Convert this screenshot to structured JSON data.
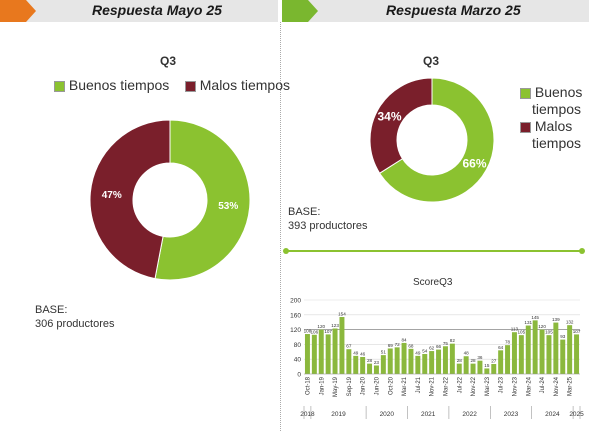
{
  "left_panel": {
    "header": "Respuesta Mayo 25",
    "base_label": "BASE:",
    "base_value": "306 productores"
  },
  "right_panel": {
    "header": "Respuesta Marzo 25",
    "base_label": "BASE:",
    "base_value": "393 productores"
  },
  "colors": {
    "buenos": "#8bc230",
    "malos": "#7a1f2b",
    "bars": "#8bb83d",
    "header_orange": "#e8781e",
    "header_green": "#7ab72f"
  },
  "chart_data": [
    {
      "type": "pie",
      "variant": "donut",
      "title": "Q3",
      "legend_position": "top",
      "labels": [
        "Buenos tiempos",
        "Malos tiempos"
      ],
      "values": [
        53,
        47
      ],
      "value_labels": [
        "53%",
        "47%"
      ]
    },
    {
      "type": "pie",
      "variant": "donut",
      "title": "Q3",
      "legend_position": "right",
      "labels": [
        "Buenos tiempos",
        "Malos tiempos"
      ],
      "legend_lines": [
        [
          "Buenos",
          "tiempos"
        ],
        [
          "Malos",
          "tiempos"
        ]
      ],
      "values": [
        66,
        34
      ],
      "value_labels": [
        "66%",
        "34%"
      ]
    },
    {
      "type": "bar",
      "title": "ScoreQ3",
      "ylim": [
        0,
        200
      ],
      "yticks": [
        "0",
        "40",
        "80",
        "120",
        "160",
        "200"
      ],
      "tick_labels": [
        "Oct-18",
        "Jan-19",
        "May-19",
        "Sep-19",
        "Jan-20",
        "Jun-20",
        "Oct-20",
        "Mar-21",
        "Jul-21",
        "Nov-21",
        "Mar-22",
        "Jul-22",
        "Nov-22",
        "Mar-23",
        "Jul-23",
        "Nov-23",
        "Mar-24",
        "Jul-24",
        "Nov-24",
        "Mar-25"
      ],
      "values": [
        108,
        106,
        120,
        107,
        123,
        154,
        67,
        49,
        46,
        28,
        23,
        51,
        69,
        72,
        84,
        68,
        49,
        54,
        62,
        66,
        75,
        82,
        28,
        48,
        28,
        36,
        15,
        27,
        64,
        78,
        113,
        105,
        131,
        145,
        120,
        105,
        139,
        93,
        132,
        107
      ],
      "years": [
        "2018",
        "2019",
        "2020",
        "2021",
        "2022",
        "2023",
        "2024",
        "2025"
      ],
      "reference_line": 120
    }
  ]
}
